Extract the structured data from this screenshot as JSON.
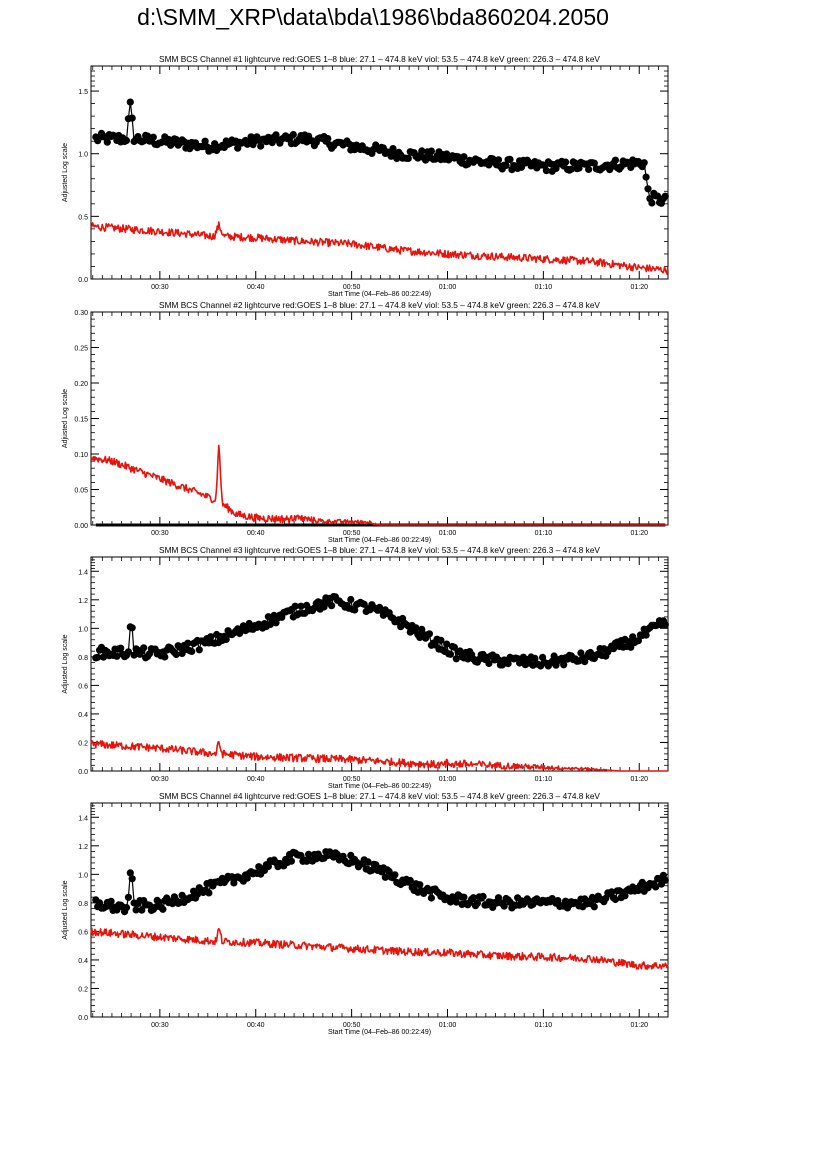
{
  "page": {
    "title": "d:\\SMM_XRP\\data\\bda\\1986\\bda860204.2050"
  },
  "colors": {
    "goes": "#e8140c",
    "bcs": "#000000",
    "axis": "#000000"
  },
  "chart_data": [
    {
      "type": "line",
      "title": "SMM BCS Channel #1 lightcurve  red:GOES 1–8  blue: 27.1 – 474.8 keV  viol: 53.5 – 474.8 keV  green: 226.3 – 474.8 keV",
      "xlabel": "Start Time (04–Feb–86 00:22:49)",
      "ylabel": "Adjusted Log scale",
      "xlim": [
        "00:22:49",
        "01:23:00"
      ],
      "xticks": [
        "00:30",
        "00:40",
        "00:50",
        "01:00",
        "01:10",
        "01:20"
      ],
      "ylim": [
        0,
        1.7
      ],
      "yticks": [
        "0.0",
        "0.5",
        "1.0",
        "1.5"
      ],
      "grid": false,
      "series": [
        {
          "color": "black",
          "style": "line+markers",
          "keyframes": [
            [
              "00:22:49",
              1.12
            ],
            [
              "00:26:30",
              1.12
            ],
            [
              "00:26:55",
              1.38
            ],
            [
              "00:27:20",
              1.12
            ],
            [
              "00:35:00",
              1.06
            ],
            [
              "00:40:00",
              1.1
            ],
            [
              "00:45:00",
              1.12
            ],
            [
              "00:50:00",
              1.06
            ],
            [
              "00:55:00",
              1.0
            ],
            [
              "01:00:00",
              0.97
            ],
            [
              "01:05:00",
              0.92
            ],
            [
              "01:10:00",
              0.9
            ],
            [
              "01:15:00",
              0.9
            ],
            [
              "01:20:30",
              0.93
            ],
            [
              "01:21:00",
              0.65
            ],
            [
              "01:23:00",
              0.62
            ]
          ]
        },
        {
          "color": "red",
          "style": "line",
          "keyframes": [
            [
              "00:22:49",
              0.42
            ],
            [
              "00:30:00",
              0.38
            ],
            [
              "00:35:40",
              0.34
            ],
            [
              "00:36:10",
              0.43
            ],
            [
              "00:36:40",
              0.34
            ],
            [
              "00:40:00",
              0.33
            ],
            [
              "00:45:00",
              0.3
            ],
            [
              "00:50:00",
              0.28
            ],
            [
              "00:55:00",
              0.23
            ],
            [
              "01:00:00",
              0.2
            ],
            [
              "01:05:00",
              0.18
            ],
            [
              "01:10:00",
              0.16
            ],
            [
              "01:15:00",
              0.14
            ],
            [
              "01:20:00",
              0.09
            ],
            [
              "01:23:00",
              0.07
            ]
          ]
        }
      ]
    },
    {
      "type": "line",
      "title": "SMM BCS Channel #2 lightcurve  red:GOES 1–8  blue: 27.1 – 474.8 keV  viol: 53.5 – 474.8 keV  green: 226.3 – 474.8 keV",
      "xlabel": "Start Time (04–Feb–86 00:22:49)",
      "ylabel": "Adjusted Log scale",
      "xlim": [
        "00:22:49",
        "01:23:00"
      ],
      "xticks": [
        "00:30",
        "00:40",
        "00:50",
        "01:00",
        "01:10",
        "01:20"
      ],
      "ylim": [
        0,
        0.3
      ],
      "yticks": [
        "0.00",
        "0.05",
        "0.10",
        "0.15",
        "0.20",
        "0.25",
        "0.30"
      ],
      "grid": false,
      "series": [
        {
          "color": "black",
          "style": "line+markers",
          "keyframes": [
            [
              "00:22:49",
              0.0
            ],
            [
              "01:23:00",
              0.0
            ]
          ]
        },
        {
          "color": "red",
          "style": "line",
          "keyframes": [
            [
              "00:22:49",
              0.095
            ],
            [
              "00:25:00",
              0.09
            ],
            [
              "00:28:00",
              0.075
            ],
            [
              "00:31:00",
              0.06
            ],
            [
              "00:34:00",
              0.045
            ],
            [
              "00:35:50",
              0.035
            ],
            [
              "00:36:10",
              0.115
            ],
            [
              "00:36:30",
              0.03
            ],
            [
              "00:38:00",
              0.015
            ],
            [
              "00:40:00",
              0.01
            ],
            [
              "00:44:00",
              0.008
            ],
            [
              "00:47:00",
              0.004
            ],
            [
              "00:52:00",
              0.003
            ],
            [
              "00:53:00",
              0.0
            ],
            [
              "01:23:00",
              0.0
            ]
          ]
        }
      ]
    },
    {
      "type": "line",
      "title": "SMM BCS Channel #3 lightcurve  red:GOES 1–8  blue: 27.1 – 474.8 keV  viol: 53.5 – 474.8 keV  green: 226.3 – 474.8 keV",
      "xlabel": "Start Time (04–Feb–86 00:22:49)",
      "ylabel": "Adjusted Log scale",
      "xlim": [
        "00:22:49",
        "01:23:00"
      ],
      "xticks": [
        "00:30",
        "00:40",
        "00:50",
        "01:00",
        "01:10",
        "01:20"
      ],
      "ylim": [
        0,
        1.5
      ],
      "yticks": [
        "0.0",
        "0.2",
        "0.4",
        "0.6",
        "0.8",
        "1.0",
        "1.2",
        "1.4"
      ],
      "grid": false,
      "series": [
        {
          "color": "black",
          "style": "line+markers",
          "keyframes": [
            [
              "00:22:49",
              0.83
            ],
            [
              "00:26:40",
              0.83
            ],
            [
              "00:27:00",
              1.06
            ],
            [
              "00:27:20",
              0.83
            ],
            [
              "00:30:00",
              0.82
            ],
            [
              "00:35:00",
              0.9
            ],
            [
              "00:40:00",
              1.02
            ],
            [
              "00:45:00",
              1.14
            ],
            [
              "00:48:00",
              1.19
            ],
            [
              "00:52:00",
              1.14
            ],
            [
              "00:55:00",
              1.05
            ],
            [
              "00:58:00",
              0.93
            ],
            [
              "01:01:00",
              0.82
            ],
            [
              "01:04:00",
              0.78
            ],
            [
              "01:07:00",
              0.77
            ],
            [
              "01:10:00",
              0.76
            ],
            [
              "01:15:00",
              0.8
            ],
            [
              "01:19:00",
              0.9
            ],
            [
              "01:23:00",
              1.05
            ]
          ]
        },
        {
          "color": "red",
          "style": "line",
          "keyframes": [
            [
              "00:22:49",
              0.19
            ],
            [
              "00:30:00",
              0.16
            ],
            [
              "00:35:50",
              0.12
            ],
            [
              "00:36:10",
              0.2
            ],
            [
              "00:36:30",
              0.12
            ],
            [
              "00:40:00",
              0.1
            ],
            [
              "00:45:00",
              0.09
            ],
            [
              "00:50:00",
              0.08
            ],
            [
              "00:55:00",
              0.06
            ],
            [
              "01:00:00",
              0.04
            ],
            [
              "01:05:00",
              0.03
            ],
            [
              "01:10:00",
              0.02
            ],
            [
              "01:15:00",
              0.01
            ],
            [
              "01:18:00",
              0.0
            ],
            [
              "01:23:00",
              0.0
            ]
          ]
        }
      ]
    },
    {
      "type": "line",
      "title": "SMM BCS Channel #4 lightcurve  red:GOES 1–8  blue: 27.1 – 474.8 keV  viol: 53.5 – 474.8 keV  green: 226.3 – 474.8 keV",
      "xlabel": "Start Time (04–Feb–86 00:22:49)",
      "ylabel": "Adjusted Log scale",
      "xlim": [
        "00:22:49",
        "01:23:00"
      ],
      "xticks": [
        "00:30",
        "00:40",
        "00:50",
        "01:00",
        "01:10",
        "01:20"
      ],
      "ylim": [
        0,
        1.5
      ],
      "yticks": [
        "0.0",
        "0.2",
        "0.4",
        "0.6",
        "0.8",
        "1.0",
        "1.2",
        "1.4"
      ],
      "grid": false,
      "series": [
        {
          "color": "black",
          "style": "line+markers",
          "keyframes": [
            [
              "00:22:49",
              0.8
            ],
            [
              "00:26:40",
              0.76
            ],
            [
              "00:27:00",
              1.05
            ],
            [
              "00:27:20",
              0.78
            ],
            [
              "00:30:00",
              0.78
            ],
            [
              "00:35:00",
              0.9
            ],
            [
              "00:40:00",
              1.02
            ],
            [
              "00:44:00",
              1.12
            ],
            [
              "00:47:00",
              1.13
            ],
            [
              "00:50:00",
              1.1
            ],
            [
              "00:54:00",
              1.0
            ],
            [
              "00:57:00",
              0.9
            ],
            [
              "01:00:00",
              0.83
            ],
            [
              "01:05:00",
              0.8
            ],
            [
              "01:10:00",
              0.8
            ],
            [
              "01:15:00",
              0.8
            ],
            [
              "01:19:00",
              0.88
            ],
            [
              "01:23:00",
              0.97
            ]
          ]
        },
        {
          "color": "red",
          "style": "line",
          "keyframes": [
            [
              "00:22:49",
              0.6
            ],
            [
              "00:30:00",
              0.56
            ],
            [
              "00:35:50",
              0.53
            ],
            [
              "00:36:10",
              0.62
            ],
            [
              "00:36:30",
              0.53
            ],
            [
              "00:40:00",
              0.52
            ],
            [
              "00:45:00",
              0.5
            ],
            [
              "00:50:00",
              0.48
            ],
            [
              "00:55:00",
              0.46
            ],
            [
              "01:00:00",
              0.45
            ],
            [
              "01:05:00",
              0.43
            ],
            [
              "01:10:00",
              0.42
            ],
            [
              "01:15:00",
              0.41
            ],
            [
              "01:20:00",
              0.36
            ],
            [
              "01:23:00",
              0.36
            ]
          ]
        }
      ]
    }
  ]
}
